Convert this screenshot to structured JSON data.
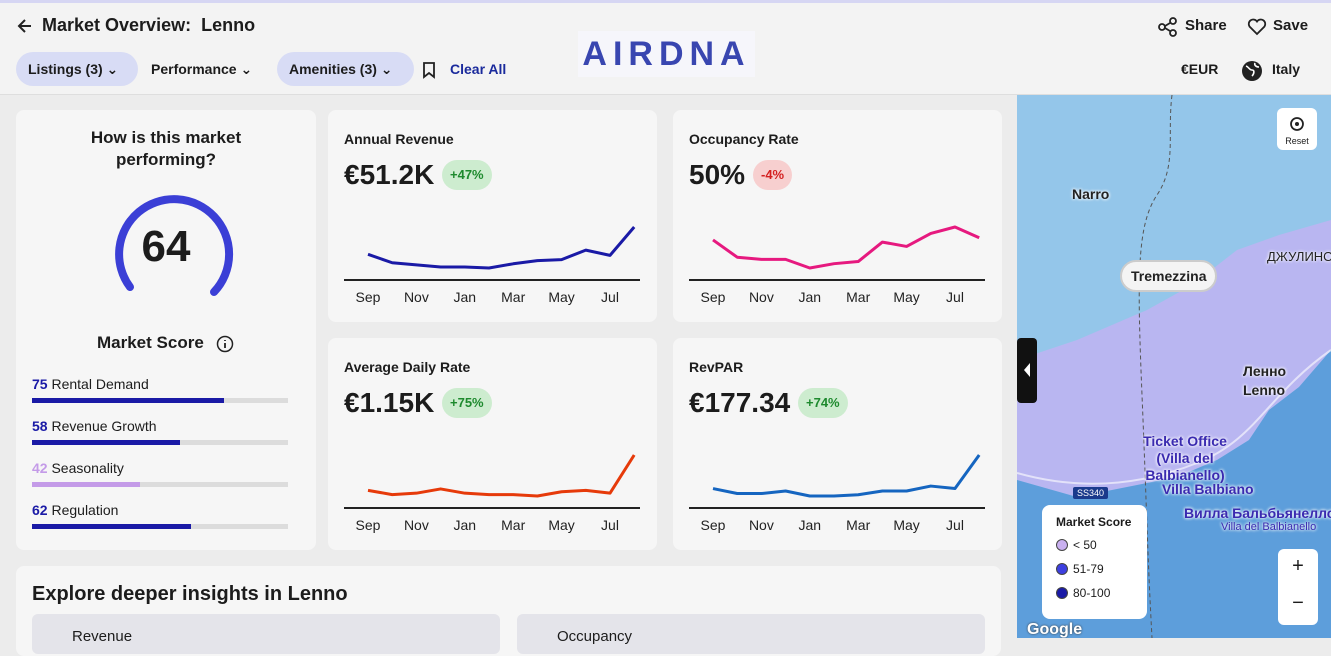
{
  "header": {
    "title": "Market Overview:  Lenno",
    "share": "Share",
    "save": "Save",
    "logo": "AIRDNA",
    "currency": "€EUR",
    "country": "Italy"
  },
  "filters": {
    "listings": "Listings (3)",
    "performance": "Performance",
    "amenities": "Amenities (3)",
    "clear": "Clear All"
  },
  "score_card": {
    "title": "How is this market performing?",
    "score": 64,
    "label": "Market Score",
    "factors": [
      {
        "value": 75,
        "name": "Rental Demand",
        "color": "#1a1aa6"
      },
      {
        "value": 58,
        "name": "Revenue Growth",
        "color": "#1a1aa6"
      },
      {
        "value": 42,
        "name": "Seasonality",
        "color": "#c49be8"
      },
      {
        "value": 62,
        "name": "Regulation",
        "color": "#1a1aa6"
      }
    ]
  },
  "months": [
    "Sep",
    "Nov",
    "Jan",
    "Mar",
    "May",
    "Jul"
  ],
  "metrics": [
    {
      "title": "Annual Revenue",
      "value": "€51.2K",
      "change": "+47%",
      "trend": "up",
      "color": "#1a1aa6",
      "values": [
        2.7,
        1.9,
        1.7,
        1.5,
        1.5,
        1.4,
        1.8,
        2.1,
        2.2,
        3.1,
        2.6,
        5.3
      ]
    },
    {
      "title": "Occupancy Rate",
      "value": "50%",
      "change": "-4%",
      "trend": "down",
      "color": "#e6197f",
      "values": [
        45,
        37,
        36,
        36,
        32,
        34,
        35,
        44,
        42,
        48,
        51,
        46
      ]
    },
    {
      "title": "Average Daily Rate",
      "value": "€1.15K",
      "change": "+75%",
      "trend": "up",
      "color": "#e63a0a",
      "values": [
        95,
        92,
        93,
        96,
        93,
        92,
        92,
        91,
        94,
        95,
        93,
        120
      ]
    },
    {
      "title": "RevPAR",
      "value": "€177.34",
      "change": "+74%",
      "trend": "up",
      "color": "#1565c0",
      "values": [
        48,
        44,
        44,
        46,
        42,
        42,
        43,
        46,
        46,
        50,
        48,
        75
      ]
    }
  ],
  "insights": {
    "title": "Explore deeper insights in Lenno",
    "tabs": [
      "Revenue",
      "Occupancy"
    ]
  },
  "map": {
    "reset": "Reset",
    "places": [
      "Narro",
      "Tremezzina",
      "ДЖУЛИНО",
      "Ленно",
      "Lenno",
      "Ticket Office (Villa del Balbianello)",
      "SS340",
      "Villa Balbiano",
      "Вилла Бальбьянелло",
      "Villa del Balbianello"
    ],
    "legend": {
      "title": "Market Score",
      "items": [
        {
          "label": "< 50",
          "color": "#c9b0f0"
        },
        {
          "label": "51-79",
          "color": "#3d3fe0"
        },
        {
          "label": "80-100",
          "color": "#1a1aa6"
        }
      ]
    },
    "zoom_in": "+",
    "zoom_out": "−",
    "attribution": "Google"
  }
}
